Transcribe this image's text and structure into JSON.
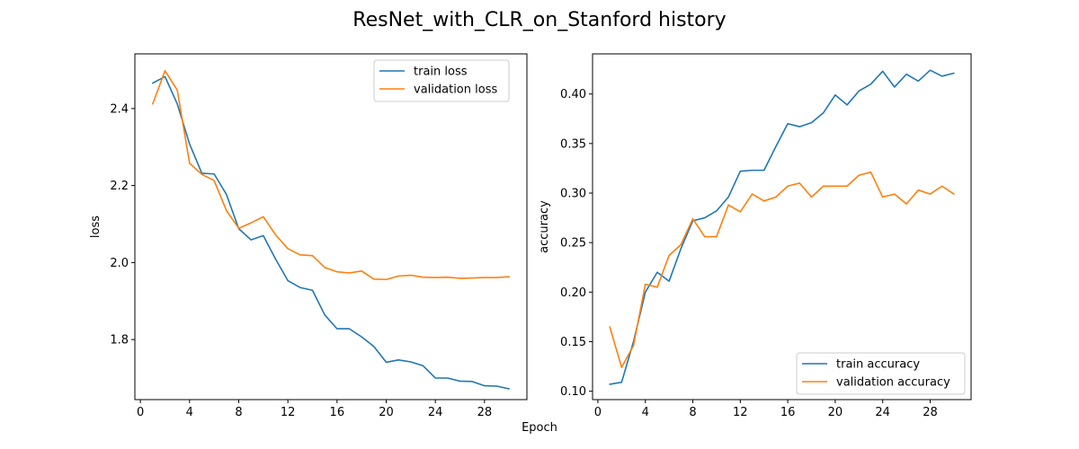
{
  "figure": {
    "title": "ResNet_with_CLR_on_Stanford history",
    "xlabel": "Epoch"
  },
  "colors": {
    "train": "#1f77b4",
    "validation": "#ff7f0e"
  },
  "chart_data": [
    {
      "type": "line",
      "title": "",
      "xlabel": "",
      "ylabel": "loss",
      "xlim": [
        -0.45,
        31.45
      ],
      "ylim": [
        1.644,
        2.542
      ],
      "xticks": [
        0,
        4,
        8,
        12,
        16,
        20,
        24,
        28
      ],
      "yticks": [
        1.8,
        2.0,
        2.2,
        2.4
      ],
      "ytick_labels": [
        "1.8",
        "2.0",
        "2.2",
        "2.4"
      ],
      "legend_position": "top-right",
      "x": [
        1,
        2,
        3,
        4,
        5,
        6,
        7,
        8,
        9,
        10,
        11,
        12,
        13,
        14,
        15,
        16,
        17,
        18,
        19,
        20,
        21,
        22,
        23,
        24,
        25,
        26,
        27,
        28,
        29,
        30
      ],
      "series": [
        {
          "name": "train loss",
          "color": "#1f77b4",
          "values": [
            2.466,
            2.483,
            2.412,
            2.308,
            2.232,
            2.23,
            2.177,
            2.088,
            2.059,
            2.07,
            2.009,
            1.953,
            1.935,
            1.928,
            1.864,
            1.828,
            1.828,
            1.807,
            1.782,
            1.741,
            1.747,
            1.742,
            1.732,
            1.7,
            1.7,
            1.692,
            1.691,
            1.68,
            1.679,
            1.672
          ]
        },
        {
          "name": "validation loss",
          "color": "#ff7f0e",
          "values": [
            2.412,
            2.498,
            2.448,
            2.258,
            2.229,
            2.213,
            2.135,
            2.089,
            2.103,
            2.119,
            2.072,
            2.036,
            2.02,
            2.018,
            1.987,
            1.976,
            1.973,
            1.978,
            1.957,
            1.956,
            1.965,
            1.967,
            1.962,
            1.961,
            1.962,
            1.959,
            1.96,
            1.961,
            1.961,
            1.963
          ]
        }
      ]
    },
    {
      "type": "line",
      "title": "",
      "xlabel": "",
      "ylabel": "accuracy",
      "xlim": [
        -0.45,
        31.45
      ],
      "ylim": [
        0.0915,
        0.4405
      ],
      "xticks": [
        0,
        4,
        8,
        12,
        16,
        20,
        24,
        28
      ],
      "yticks": [
        0.1,
        0.15,
        0.2,
        0.25,
        0.3,
        0.35,
        0.4
      ],
      "ytick_labels": [
        "0.10",
        "0.15",
        "0.20",
        "0.25",
        "0.30",
        "0.35",
        "0.40"
      ],
      "legend_position": "lower-right",
      "x": [
        1,
        2,
        3,
        4,
        5,
        6,
        7,
        8,
        9,
        10,
        11,
        12,
        13,
        14,
        15,
        16,
        17,
        18,
        19,
        20,
        21,
        22,
        23,
        24,
        25,
        26,
        27,
        28,
        29,
        30
      ],
      "series": [
        {
          "name": "train accuracy",
          "color": "#1f77b4",
          "values": [
            0.107,
            0.109,
            0.15,
            0.2,
            0.22,
            0.211,
            0.244,
            0.272,
            0.275,
            0.282,
            0.296,
            0.322,
            0.323,
            0.323,
            0.347,
            0.37,
            0.367,
            0.371,
            0.381,
            0.399,
            0.389,
            0.403,
            0.41,
            0.423,
            0.407,
            0.42,
            0.413,
            0.424,
            0.418,
            0.421
          ]
        },
        {
          "name": "validation accuracy",
          "color": "#ff7f0e",
          "values": [
            0.165,
            0.124,
            0.146,
            0.208,
            0.205,
            0.237,
            0.248,
            0.274,
            0.256,
            0.256,
            0.288,
            0.281,
            0.299,
            0.292,
            0.296,
            0.307,
            0.31,
            0.296,
            0.307,
            0.307,
            0.307,
            0.318,
            0.321,
            0.296,
            0.299,
            0.289,
            0.303,
            0.299,
            0.307,
            0.299
          ]
        }
      ]
    }
  ]
}
